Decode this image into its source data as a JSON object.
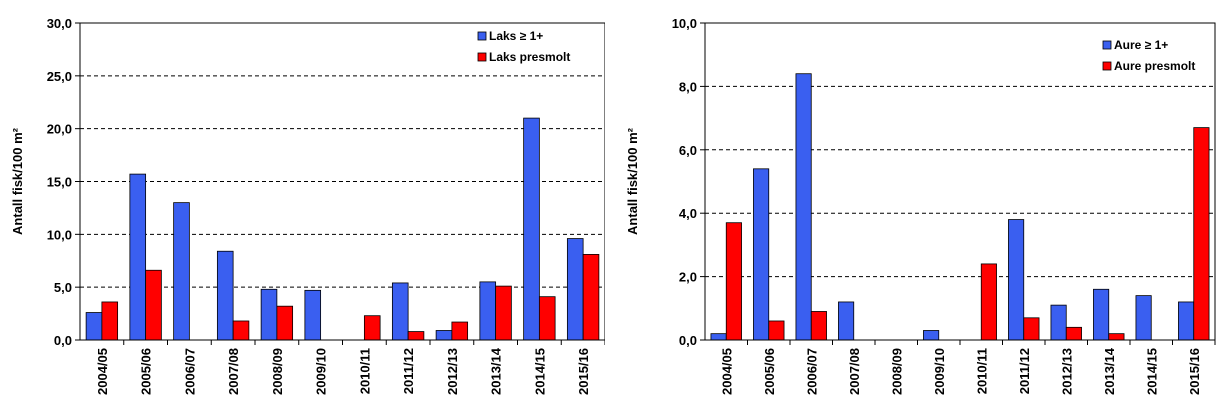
{
  "chart_data": [
    {
      "type": "bar",
      "categories": [
        "2004/05",
        "2005/06",
        "2006/07",
        "2007/08",
        "2008/09",
        "2009/10",
        "2010/11",
        "2011/12",
        "2012/13",
        "2013/14",
        "2014/15",
        "2015/16"
      ],
      "series": [
        {
          "name": "Laks ≥ 1+",
          "color": "#3a5ff0",
          "values": [
            2.6,
            15.7,
            13.0,
            8.4,
            4.8,
            4.7,
            null,
            5.4,
            0.9,
            5.5,
            21.0,
            9.6
          ]
        },
        {
          "name": "Laks presmolt",
          "color": "#ff0000",
          "values": [
            3.6,
            6.6,
            null,
            1.8,
            3.2,
            null,
            2.3,
            0.8,
            1.7,
            5.1,
            4.1,
            8.1
          ]
        }
      ],
      "ylabel": "Antall fisk/100 m²",
      "ylim": [
        0,
        30
      ],
      "yticks": [
        "0,0",
        "5,0",
        "10,0",
        "15,0",
        "20,0",
        "25,0",
        "30,0"
      ],
      "grid": true,
      "legend": "top-right"
    },
    {
      "type": "bar",
      "categories": [
        "2004/05",
        "2005/06",
        "2006/07",
        "2007/08",
        "2008/09",
        "2009/10",
        "2010/11",
        "2011/12",
        "2012/13",
        "2013/14",
        "2014/15",
        "2015/16"
      ],
      "series": [
        {
          "name": "Aure ≥ 1+",
          "color": "#3a5ff0",
          "values": [
            0.2,
            5.4,
            8.4,
            1.2,
            null,
            0.3,
            null,
            3.8,
            1.1,
            1.6,
            1.4,
            1.2
          ]
        },
        {
          "name": "Aure presmolt",
          "color": "#ff0000",
          "values": [
            3.7,
            0.6,
            0.9,
            null,
            null,
            null,
            2.4,
            0.7,
            0.4,
            0.2,
            null,
            6.7
          ]
        }
      ],
      "ylabel": "Antall fisk/100 m²",
      "ylim": [
        0,
        10
      ],
      "yticks": [
        "0,0",
        "2,0",
        "4,0",
        "6,0",
        "8,0",
        "10,0"
      ],
      "grid": true,
      "legend": "top-right"
    }
  ]
}
